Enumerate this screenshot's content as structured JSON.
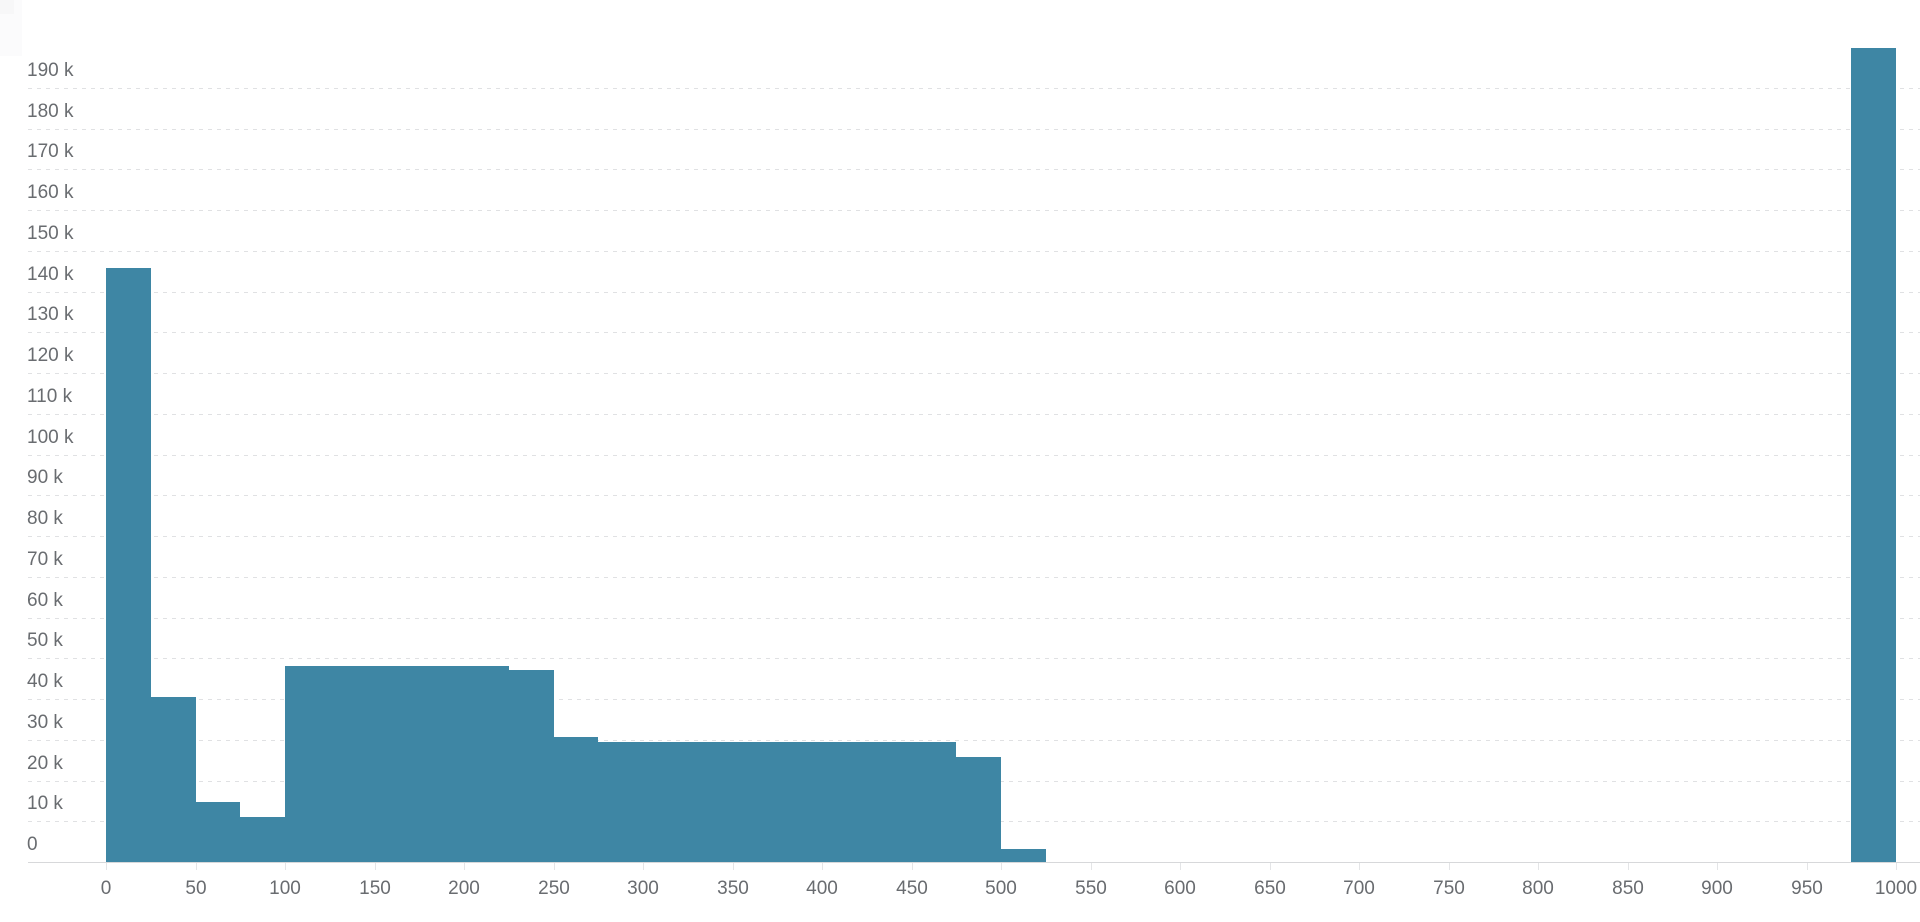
{
  "page": {
    "background_color": "#ffffff"
  },
  "chart_data": {
    "type": "bar",
    "subtype": "histogram",
    "title": "",
    "xlabel": "",
    "ylabel": "",
    "legend": null,
    "grid": "horizontal-dashed",
    "bar_color": "#3e86a4",
    "axis_label_color": "#696c70",
    "gridline_color": "#e0e1e3",
    "axis_line_color": "#d7d8da",
    "xlim": [
      0,
      1014
    ],
    "ylim": [
      0,
      200000
    ],
    "x_tick_interval": 50,
    "y_tick_interval": 10000,
    "x_tick_values": [
      0,
      50,
      100,
      150,
      200,
      250,
      300,
      350,
      400,
      450,
      500,
      550,
      600,
      650,
      700,
      750,
      800,
      850,
      900,
      950,
      1000
    ],
    "x_tick_labels": [
      "0",
      "50",
      "100",
      "150",
      "200",
      "250",
      "300",
      "350",
      "400",
      "450",
      "500",
      "550",
      "600",
      "650",
      "700",
      "750",
      "800",
      "850",
      "900",
      "950",
      "1000"
    ],
    "y_tick_values": [
      0,
      10000,
      20000,
      30000,
      40000,
      50000,
      60000,
      70000,
      80000,
      90000,
      100000,
      110000,
      120000,
      130000,
      140000,
      150000,
      160000,
      170000,
      180000,
      190000
    ],
    "y_tick_labels": [
      "0",
      "10 k",
      "20 k",
      "30 k",
      "40 k",
      "50 k",
      "60 k",
      "70 k",
      "80 k",
      "90 k",
      "100 k",
      "110 k",
      "120 k",
      "130 k",
      "140 k",
      "150 k",
      "160 k",
      "170 k",
      "180 k",
      "190 k"
    ],
    "bin_width": 25,
    "bin_starts": [
      0,
      25,
      50,
      75,
      100,
      125,
      150,
      175,
      200,
      225,
      250,
      275,
      300,
      325,
      350,
      375,
      400,
      425,
      450,
      475,
      500,
      525,
      550,
      575,
      600,
      625,
      650,
      675,
      700,
      725,
      750,
      775,
      800,
      825,
      850,
      875,
      900,
      925,
      950,
      975
    ],
    "values": [
      145800,
      40500,
      14700,
      11000,
      48100,
      48100,
      48100,
      48100,
      48100,
      47200,
      30800,
      29400,
      29400,
      29400,
      29400,
      29400,
      29400,
      29400,
      29400,
      25700,
      3100,
      0,
      0,
      0,
      0,
      0,
      0,
      0,
      0,
      0,
      0,
      0,
      0,
      0,
      0,
      0,
      0,
      0,
      0,
      199800
    ]
  }
}
